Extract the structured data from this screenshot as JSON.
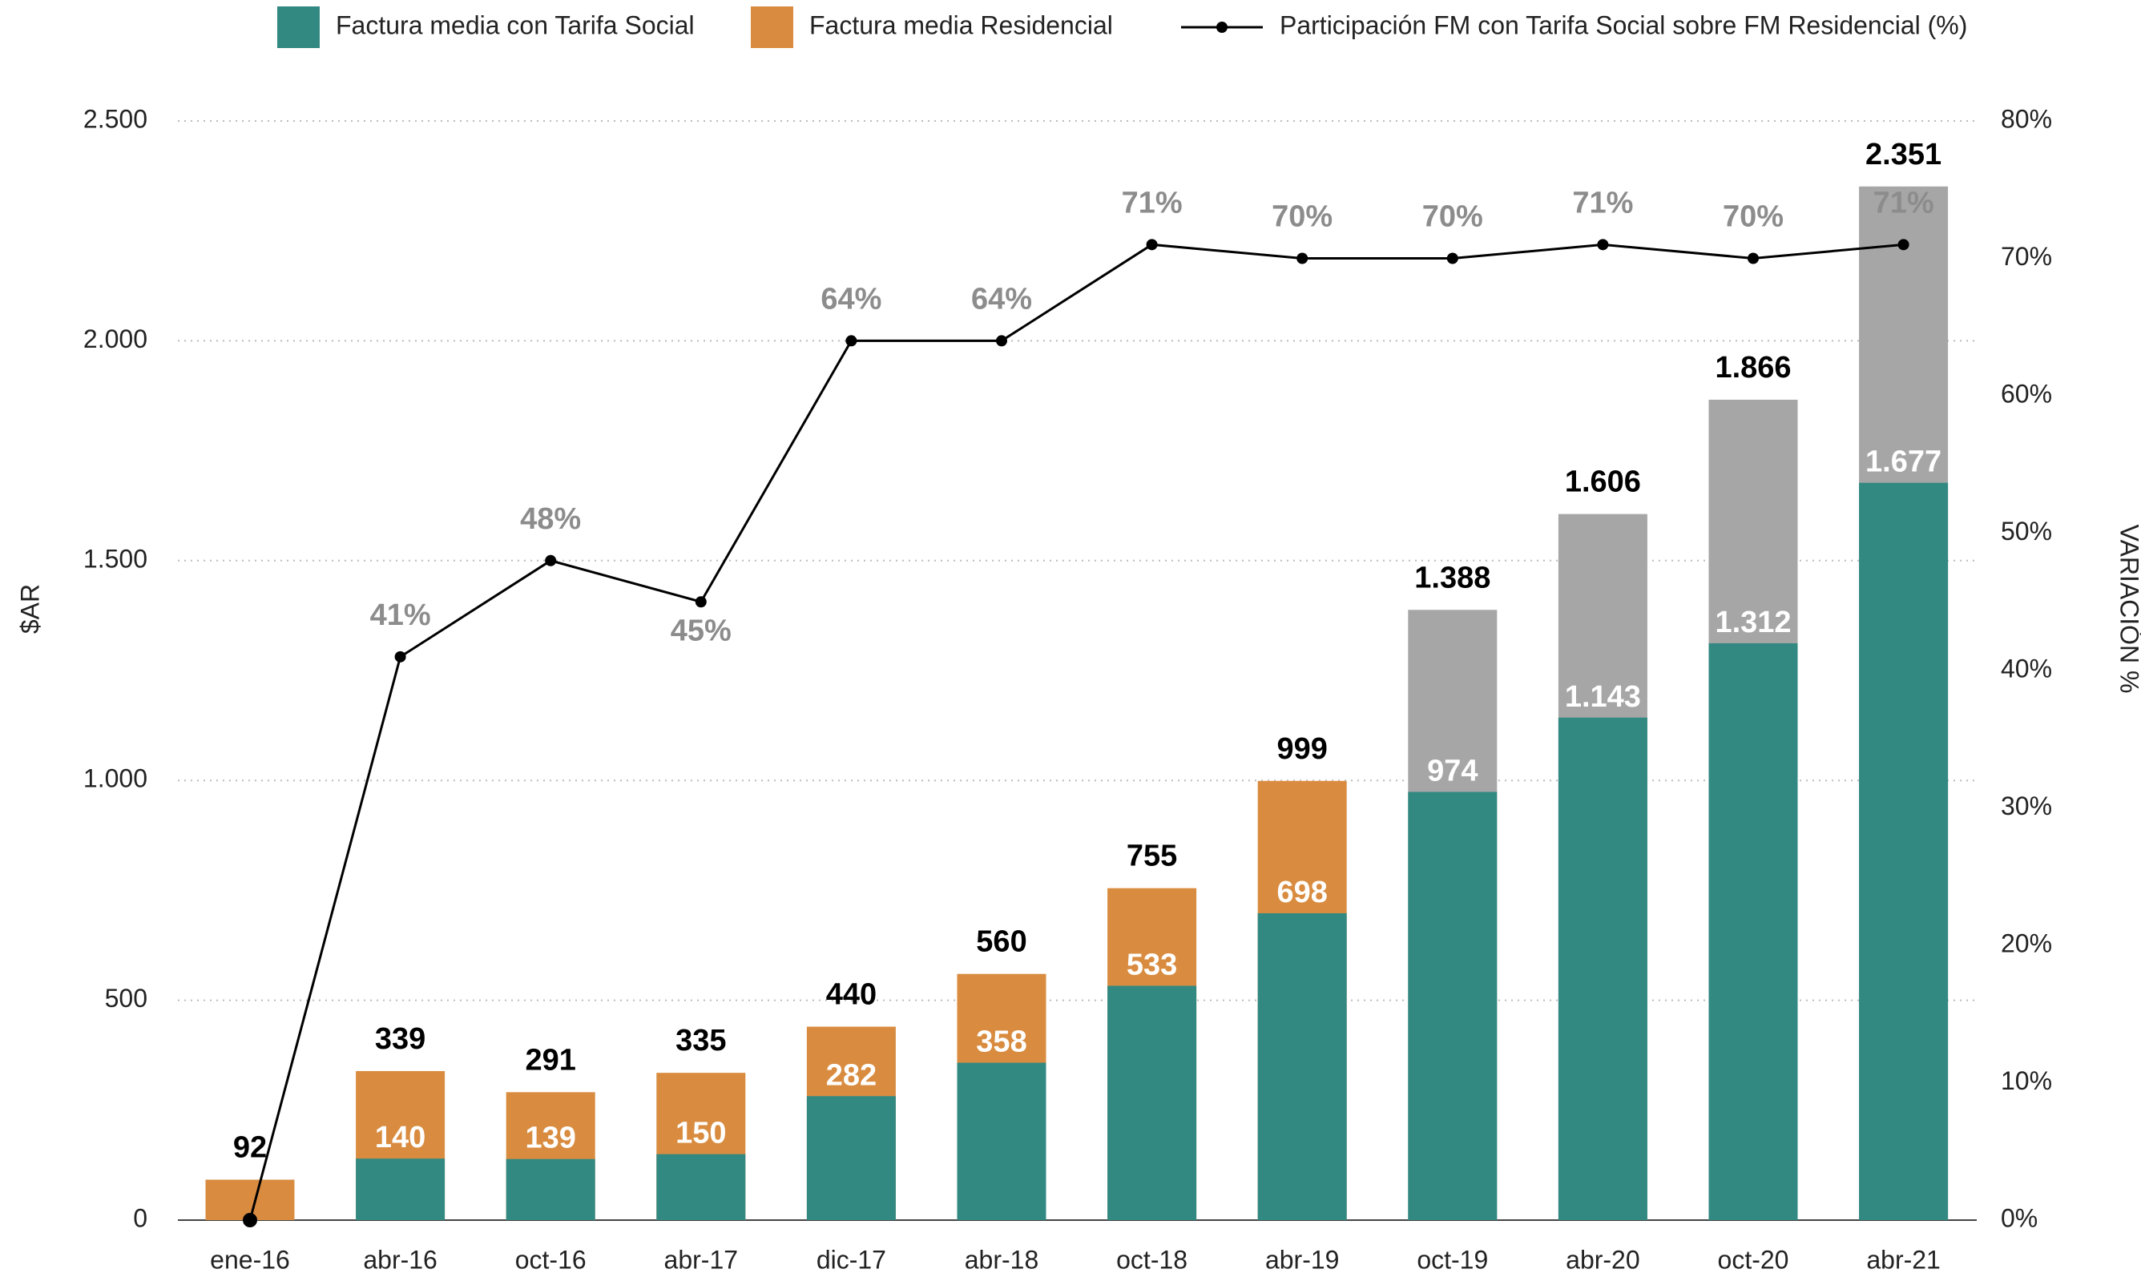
{
  "chart_data": {
    "type": "bar",
    "y_label": "$AR",
    "y2_label": "VARIACIÓN %",
    "categories": [
      "ene-16",
      "abr-16",
      "oct-16",
      "abr-17",
      "dic-17",
      "abr-18",
      "oct-18",
      "abr-19",
      "oct-19",
      "abr-20",
      "oct-20",
      "abr-21"
    ],
    "series": [
      {
        "name": "Factura media Residencial",
        "color": "#d98c40",
        "colors": [
          "#d98c40",
          "#d98c40",
          "#d98c40",
          "#d98c40",
          "#d98c40",
          "#d98c40",
          "#d98c40",
          "#d98c40",
          "#a6a6a6",
          "#a6a6a6",
          "#a6a6a6",
          "#a6a6a6"
        ],
        "values": [
          92,
          339,
          291,
          335,
          440,
          560,
          755,
          999,
          1388,
          1606,
          1866,
          2351
        ],
        "value_labels": [
          "92",
          "339",
          "291",
          "335",
          "440",
          "560",
          "755",
          "999",
          "1.388",
          "1.606",
          "1.866",
          "2.351"
        ]
      },
      {
        "name": "Factura media con Tarifa Social",
        "color": "#318982",
        "values": [
          null,
          140,
          139,
          150,
          282,
          358,
          533,
          698,
          974,
          1143,
          1312,
          1677
        ],
        "value_labels": [
          null,
          "140",
          "139",
          "150",
          "282",
          "358",
          "533",
          "698",
          "974",
          "1.143",
          "1.312",
          "1.677"
        ]
      },
      {
        "name": "Participación FM con Tarifa Social sobre FM Residencial (%)",
        "color": "#000000",
        "type": "line",
        "axis": "y2",
        "values": [
          0,
          41,
          48,
          45,
          64,
          64,
          71,
          70,
          70,
          71,
          70,
          71
        ],
        "value_labels": [
          null,
          "41%",
          "48%",
          "45%",
          "64%",
          "64%",
          "71%",
          "70%",
          "70%",
          "71%",
          "70%",
          "71%"
        ]
      }
    ],
    "ylim": [
      0,
      2500
    ],
    "yticks": [
      0,
      500,
      {
        "value": 1000,
        "label": "1.000"
      },
      {
        "value": 1500,
        "label": "1.500"
      },
      {
        "value": 2000,
        "label": "2.000"
      },
      {
        "value": 2500,
        "label": "2.500"
      }
    ],
    "y2lim": [
      0,
      80
    ],
    "y2ticks": [
      {
        "value": 0,
        "label": "0%"
      },
      {
        "value": 10,
        "label": "10%"
      },
      {
        "value": 20,
        "label": "20%"
      },
      {
        "value": 30,
        "label": "30%"
      },
      {
        "value": 40,
        "label": "40%"
      },
      {
        "value": 50,
        "label": "50%"
      },
      {
        "value": 60,
        "label": "60%"
      },
      {
        "value": 70,
        "label": "70%"
      },
      {
        "value": 80,
        "label": "80%"
      }
    ],
    "grid": true
  }
}
